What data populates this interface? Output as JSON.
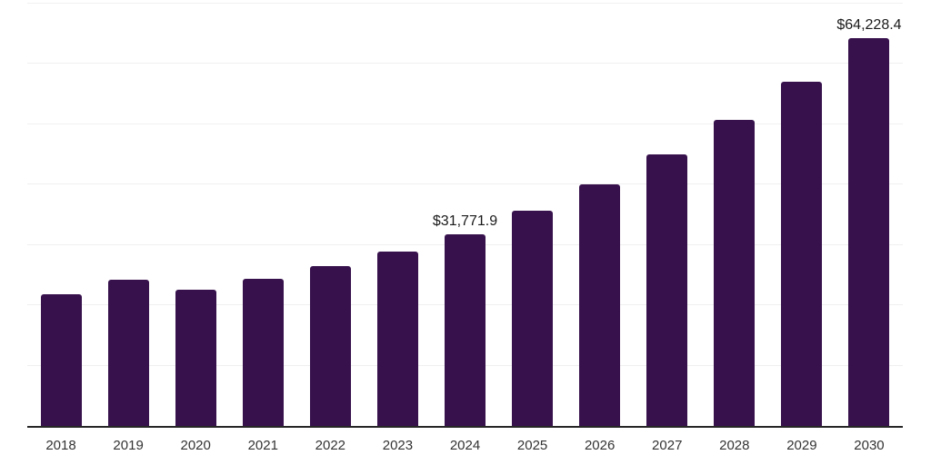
{
  "chart_data": {
    "type": "bar",
    "title": "",
    "xlabel": "",
    "ylabel": "",
    "categories": [
      "2018",
      "2019",
      "2020",
      "2021",
      "2022",
      "2023",
      "2024",
      "2025",
      "2026",
      "2027",
      "2028",
      "2029",
      "2030"
    ],
    "values": [
      21900,
      24200,
      22650,
      24400,
      26500,
      28900,
      31771.9,
      35700,
      40100,
      45000,
      50800,
      57100,
      64228.4
    ],
    "data_labels": [
      null,
      null,
      null,
      null,
      null,
      null,
      "$31,771.9",
      null,
      null,
      null,
      null,
      null,
      "$64,228.4"
    ],
    "ylim": [
      0,
      70000
    ],
    "gridline_interval": 10000,
    "grid": true,
    "legend": false,
    "y_tick_labels_visible": false,
    "colors": {
      "bar": "#37114C",
      "axis_line": "#262626",
      "gridline": "#f0f0f0",
      "data_label_text": "#1a1a1a",
      "x_tick_text": "#333333",
      "background": "#ffffff"
    }
  }
}
